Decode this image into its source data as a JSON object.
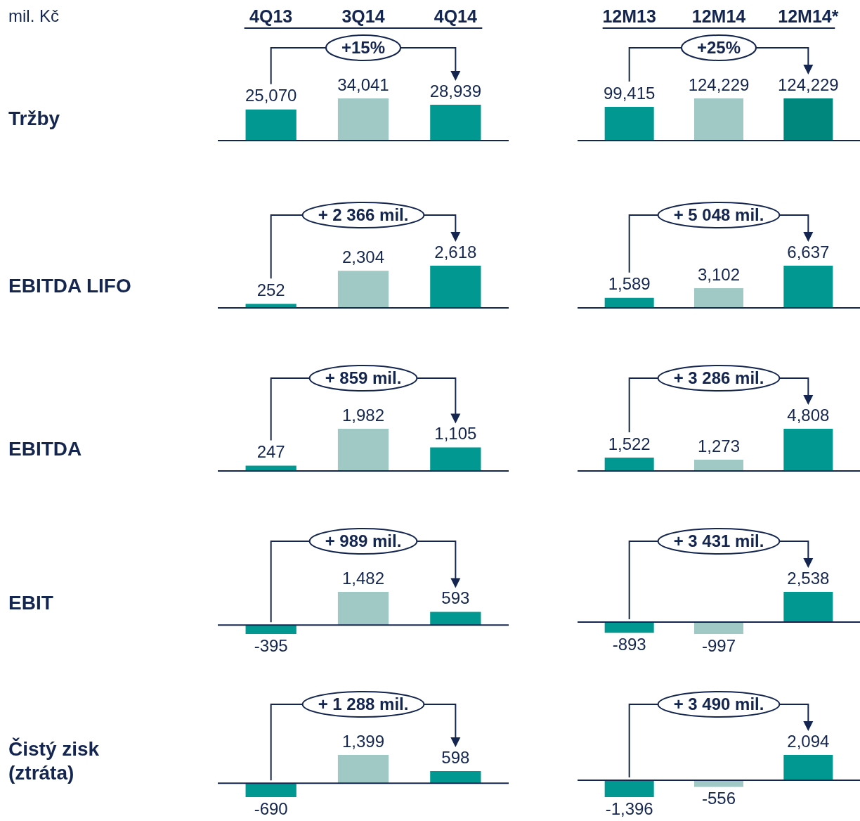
{
  "chart_data": [
    {
      "type": "bar",
      "ylabel": "Tržby",
      "categories": [
        "4Q13",
        "3Q14",
        "4Q14"
      ],
      "values": [
        25070,
        34041,
        28939
      ],
      "value_labels": [
        "25,070",
        "34,041",
        "28,939"
      ],
      "colors": [
        "#009890",
        "#a0c9c6",
        "#009890"
      ],
      "annotations": [
        "mil. Kč",
        "+15%"
      ],
      "tick_labels": "x"
    },
    {
      "type": "bar",
      "categories": [
        "12M13",
        "12M14",
        "12M14*"
      ],
      "values": [
        99415,
        124229,
        124229
      ],
      "value_labels": [
        "99,415",
        "124,229",
        "124,229"
      ],
      "colors": [
        "#009890",
        "#a0c9c6",
        "#00877d"
      ],
      "annotations": [
        "+25%"
      ],
      "tick_labels": "x"
    },
    {
      "type": "bar",
      "ylabel": "EBITDA LIFO",
      "categories": [
        null,
        null,
        null
      ],
      "values": [
        252,
        2304,
        2618
      ],
      "value_labels": [
        "252",
        "2,304",
        "2,618"
      ],
      "colors": [
        "#009890",
        "#a0c9c6",
        "#009890"
      ],
      "annotations": [
        "+ 2 366 mil."
      ],
      "tick_labels": false
    },
    {
      "type": "bar",
      "categories": [
        null,
        null,
        null
      ],
      "values": [
        1589,
        3102,
        6637
      ],
      "value_labels": [
        "1,589",
        "3,102",
        "6,637"
      ],
      "colors": [
        "#009890",
        "#a0c9c6",
        "#009890"
      ],
      "annotations": [
        "+ 5 048 mil."
      ],
      "tick_labels": false
    },
    {
      "type": "bar",
      "ylabel": "EBITDA",
      "categories": [
        null,
        null,
        null
      ],
      "values": [
        247,
        1982,
        1105
      ],
      "value_labels": [
        "247",
        "1,982",
        "1,105"
      ],
      "colors": [
        "#009890",
        "#a0c9c6",
        "#009890"
      ],
      "annotations": [
        "+ 859 mil."
      ],
      "tick_labels": false
    },
    {
      "type": "bar",
      "categories": [
        null,
        null,
        null
      ],
      "values": [
        1522,
        1273,
        4808
      ],
      "value_labels": [
        "1,522",
        "1,273",
        "4,808"
      ],
      "colors": [
        "#009890",
        "#a0c9c6",
        "#009890"
      ],
      "annotations": [
        "+ 3 286 mil."
      ],
      "tick_labels": false
    },
    {
      "type": "bar",
      "ylabel": "EBIT",
      "categories": [
        null,
        null,
        null
      ],
      "values": [
        -395,
        1482,
        593
      ],
      "value_labels": [
        "-395",
        "1,482",
        "593"
      ],
      "colors": [
        "#009890",
        "#a0c9c6",
        "#009890"
      ],
      "annotations": [
        "+ 989 mil."
      ],
      "tick_labels": false
    },
    {
      "type": "bar",
      "categories": [
        null,
        null,
        null
      ],
      "values": [
        -893,
        -997,
        2538
      ],
      "value_labels": [
        "-893",
        "-997",
        "2,538"
      ],
      "colors": [
        "#009890",
        "#a0c9c6",
        "#009890"
      ],
      "annotations": [
        "+ 3 431 mil."
      ],
      "tick_labels": false
    },
    {
      "type": "bar",
      "ylabel": "Čistý zisk (ztráta)",
      "categories": [
        null,
        null,
        null
      ],
      "values": [
        -690,
        1399,
        598
      ],
      "value_labels": [
        "-690",
        "1,399",
        "598"
      ],
      "colors": [
        "#009890",
        "#a0c9c6",
        "#009890"
      ],
      "annotations": [
        "+ 1 288 mil."
      ],
      "tick_labels": false
    },
    {
      "type": "bar",
      "categories": [
        null,
        null,
        null
      ],
      "values": [
        -1396,
        -556,
        2094
      ],
      "value_labels": [
        "-1,396",
        "-556",
        "2,094"
      ],
      "colors": [
        "#009890",
        "#a0c9c6",
        "#009890"
      ],
      "annotations": [
        "+ 3 490 mil."
      ],
      "tick_labels": false
    }
  ]
}
